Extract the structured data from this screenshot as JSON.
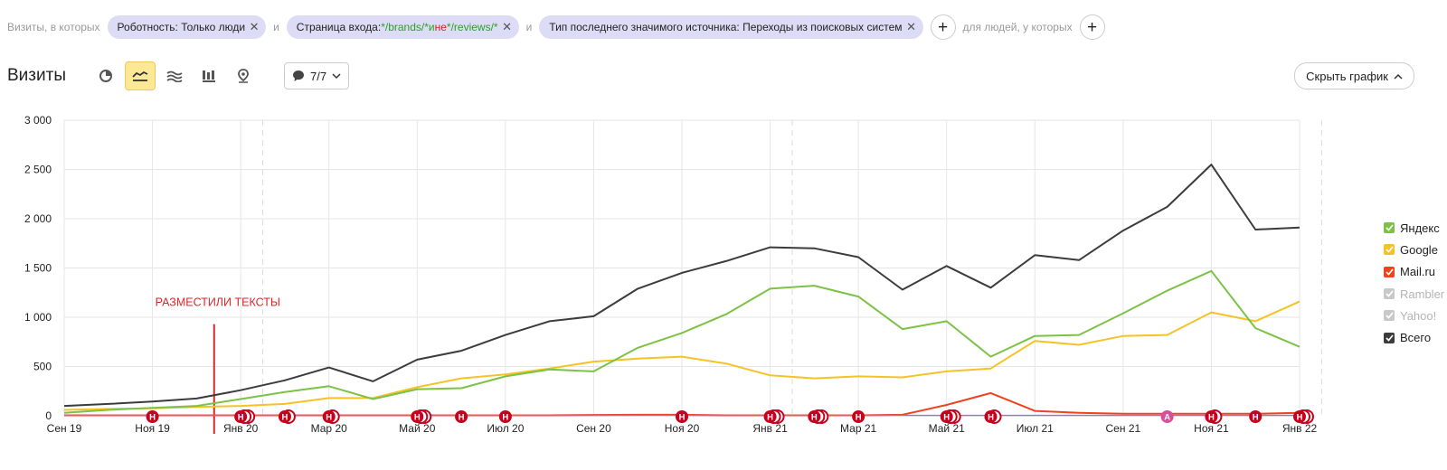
{
  "filters": {
    "prefix": "Визиты, в которых",
    "chip1": "Роботность: Только люди",
    "and1": "и",
    "chip2_pre": "Страница входа: ",
    "chip2_a": "*/brands/*",
    "chip2_and": " и ",
    "chip2_not": "не",
    "chip2_b": " */reviews/*",
    "and2": "и",
    "chip3": "Тип последнего значимого источника: Переходы из поисковых систем",
    "people": "для людей, у которых"
  },
  "toolbar": {
    "title": "Визиты",
    "notes_count": "7/7",
    "hide_chart": "Скрыть график"
  },
  "colors": {
    "yandex": "#7cc246",
    "google": "#f5c326",
    "mailru": "#f0421d",
    "total": "#3c3c3c",
    "marker": "#c7001e",
    "marker_a": "#d6519a"
  },
  "chart_data": {
    "type": "line",
    "ylim": [
      0,
      3000
    ],
    "yticks": [
      "0",
      "500",
      "1 000",
      "1 500",
      "2 000",
      "2 500",
      "3 000"
    ],
    "x": [
      "Сен 19",
      "Окт 19",
      "Ноя 19",
      "Дек 19",
      "Янв 20",
      "Фев 20",
      "Мар 20",
      "Апр 20",
      "Май 20",
      "Июн 20",
      "Июл 20",
      "Авг 20",
      "Сен 20",
      "Окт 20",
      "Ноя 20",
      "Дек 20",
      "Янв 21",
      "Фев 21",
      "Мар 21",
      "Апр 21",
      "Май 21",
      "Июн 21",
      "Июл 21",
      "Авг 21",
      "Сен 21",
      "Окт 21",
      "Ноя 21",
      "Дек 21",
      "Янв 22"
    ],
    "xtick_labels": [
      "Сен 19",
      "Ноя 19",
      "Янв 20",
      "Мар 20",
      "Май 20",
      "Июл 20",
      "Сен 20",
      "Ноя 20",
      "Янв 21",
      "Мар 21",
      "Май 21",
      "Июл 21",
      "Сен 21",
      "Ноя 21",
      "Янв 22"
    ],
    "series": [
      {
        "name": "Яндекс",
        "key": "yandex",
        "values": [
          30,
          60,
          80,
          100,
          170,
          240,
          300,
          170,
          270,
          280,
          400,
          470,
          450,
          690,
          840,
          1030,
          1290,
          1320,
          1210,
          880,
          960,
          600,
          810,
          820,
          1040,
          1270,
          1470,
          890,
          700
        ]
      },
      {
        "name": "Google",
        "key": "google",
        "values": [
          60,
          70,
          75,
          90,
          100,
          120,
          180,
          180,
          290,
          380,
          420,
          480,
          550,
          580,
          600,
          530,
          410,
          380,
          400,
          390,
          450,
          480,
          760,
          720,
          810,
          820,
          1050,
          960,
          1160
        ]
      },
      {
        "name": "Mail.ru",
        "key": "mailru",
        "values": [
          5,
          5,
          5,
          5,
          5,
          5,
          5,
          5,
          5,
          5,
          5,
          5,
          8,
          10,
          10,
          5,
          5,
          5,
          5,
          10,
          110,
          230,
          50,
          30,
          20,
          20,
          20,
          20,
          30
        ]
      },
      {
        "name": "Всего",
        "key": "total",
        "values": [
          100,
          120,
          145,
          175,
          260,
          360,
          490,
          350,
          570,
          660,
          820,
          960,
          1010,
          1290,
          1450,
          1570,
          1710,
          1700,
          1610,
          1280,
          1520,
          1300,
          1630,
          1580,
          1880,
          2120,
          2550,
          1890,
          1910
        ]
      }
    ],
    "annotation": {
      "text": "РАЗМЕСТИЛИ ТЕКСТЫ",
      "x_index": 3.5
    }
  },
  "legend": [
    {
      "label": "Яндекс",
      "color": "#7cc246",
      "checked": true
    },
    {
      "label": "Google",
      "color": "#f5c326",
      "checked": true
    },
    {
      "label": "Mail.ru",
      "color": "#f0421d",
      "checked": true
    },
    {
      "label": "Rambler",
      "color": "#c8c8c8",
      "checked": false
    },
    {
      "label": "Yahoo!",
      "color": "#c8c8c8",
      "checked": false
    },
    {
      "label": "Всего",
      "color": "#3c3c3c",
      "checked": true
    }
  ],
  "markers": [
    {
      "t": 2,
      "label": "Н",
      "stack": 1
    },
    {
      "t": 4,
      "label": "Н",
      "stack": 3
    },
    {
      "t": 5,
      "label": "Н",
      "stack": 2
    },
    {
      "t": 6,
      "label": "Н",
      "stack": 2
    },
    {
      "t": 8,
      "label": "Н",
      "stack": 3
    },
    {
      "t": 9,
      "label": "Н",
      "stack": 1
    },
    {
      "t": 10,
      "label": "Н",
      "stack": 1
    },
    {
      "t": 14,
      "label": "Н",
      "stack": 1
    },
    {
      "t": 16,
      "label": "Н",
      "stack": 3
    },
    {
      "t": 17,
      "label": "Н",
      "stack": 3
    },
    {
      "t": 18,
      "label": "Н",
      "stack": 1
    },
    {
      "t": 20,
      "label": "Н",
      "stack": 3
    },
    {
      "t": 21,
      "label": "Н",
      "stack": 2
    },
    {
      "t": 25,
      "label": "А",
      "stack": 1
    },
    {
      "t": 26,
      "label": "Н",
      "stack": 2
    },
    {
      "t": 27,
      "label": "Н",
      "stack": 1
    },
    {
      "t": 28,
      "label": "Н",
      "stack": 3
    }
  ]
}
